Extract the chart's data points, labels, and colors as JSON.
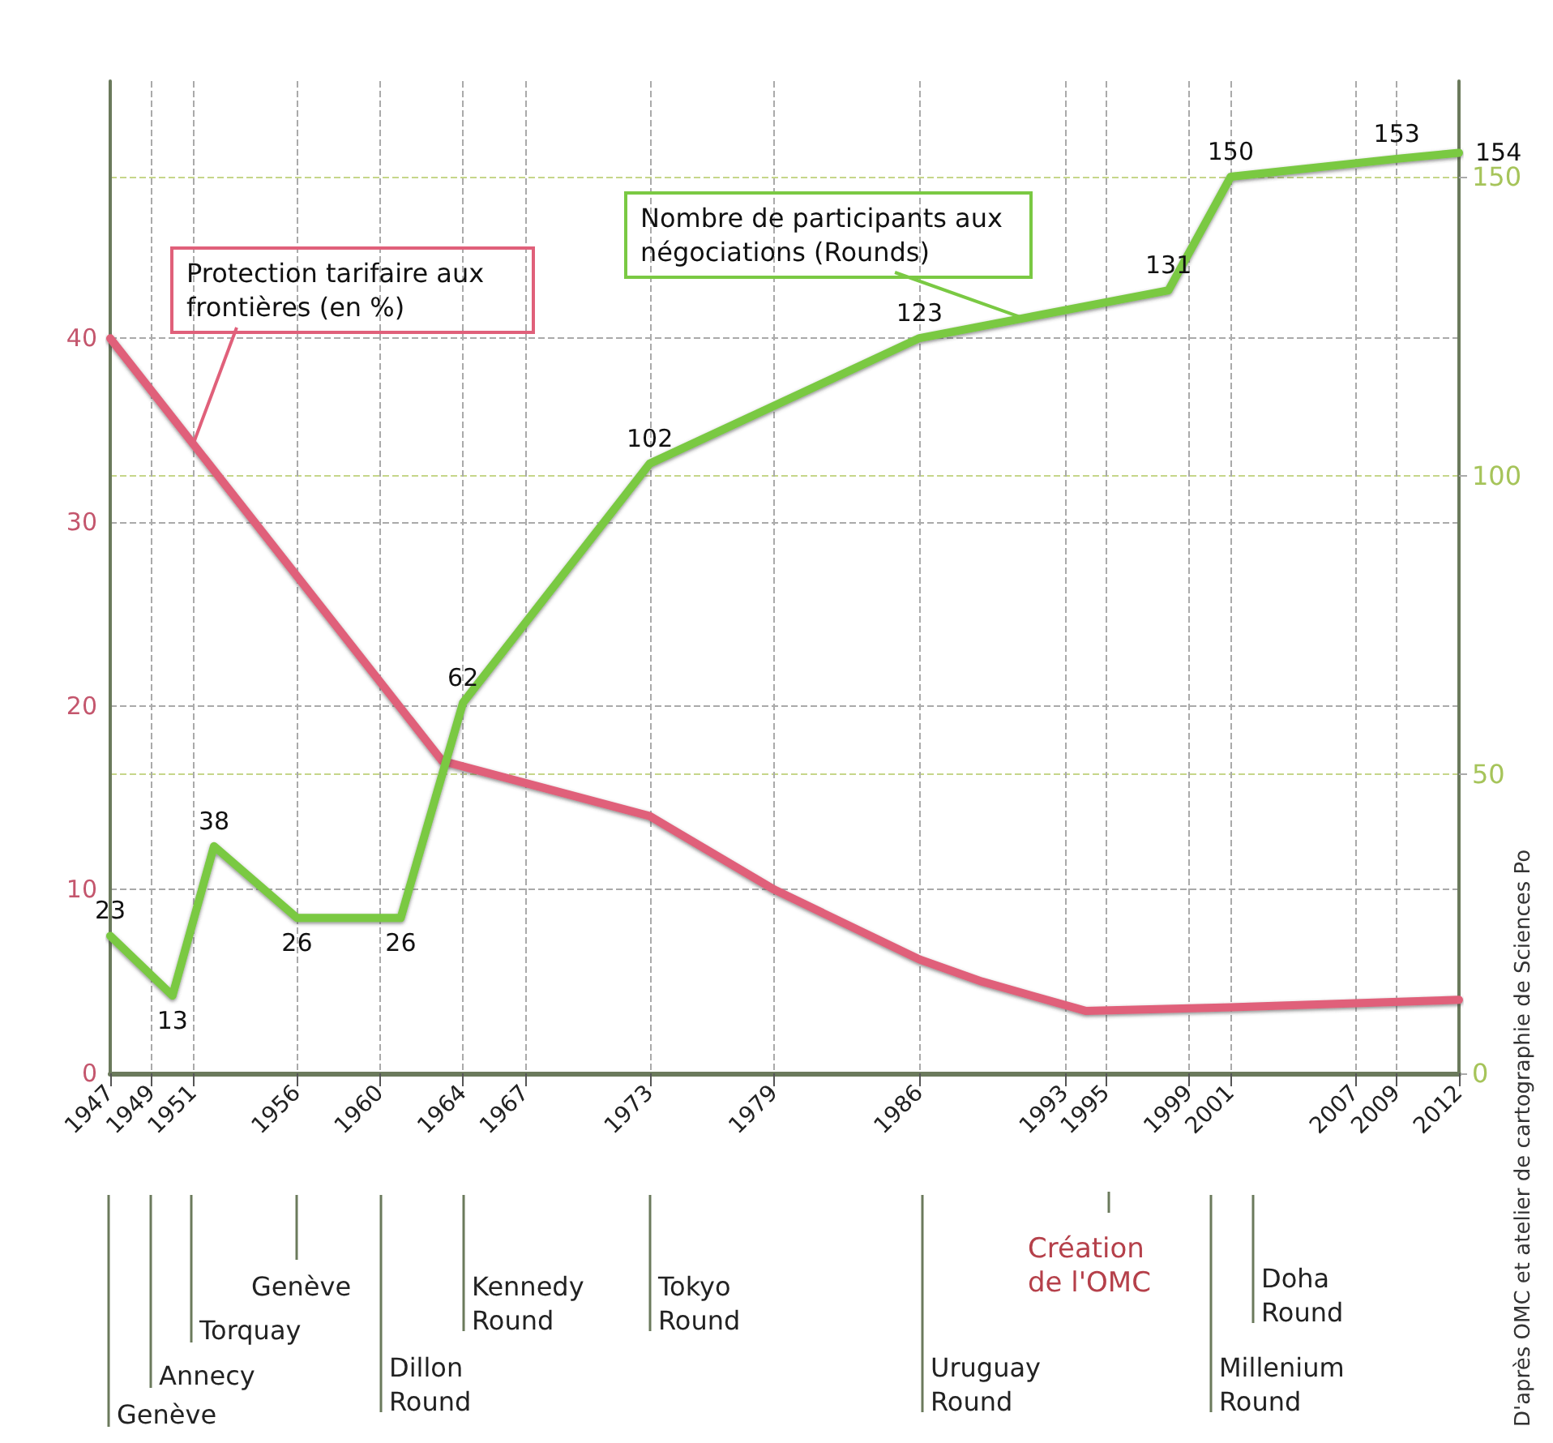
{
  "chart_data": {
    "type": "line",
    "xlim": [
      1947,
      2012
    ],
    "xticks": [
      1947,
      1949,
      1951,
      1956,
      1960,
      1964,
      1967,
      1973,
      1979,
      1986,
      1993,
      1995,
      1999,
      2001,
      2007,
      2009,
      2012
    ],
    "ylim": [
      0,
      54
    ],
    "yticks": [
      0,
      10,
      20,
      30,
      40
    ],
    "y2lim": [
      0,
      166
    ],
    "y2ticks": [
      0,
      50,
      100,
      150
    ],
    "grid": true,
    "legend": false,
    "marker": "none",
    "line_style": "solid",
    "series": [
      {
        "name": "Protection tarifaire aux frontières (en %)",
        "color": "#e0607a",
        "x": [
          1947,
          1963,
          1973,
          1979,
          1986,
          1989,
          1994,
          2001,
          2012
        ],
        "values": [
          40,
          17,
          14,
          10,
          6.2,
          5,
          3.4,
          3.6,
          4
        ]
      },
      {
        "name": "Nombre de participants aux négociations (Rounds)",
        "color": "#7ac943",
        "axis": "y2",
        "x": [
          1947,
          1950,
          1952,
          1956,
          1961,
          1964,
          1973,
          1986,
          1998,
          2001,
          2009,
          2012
        ],
        "values": [
          23,
          13,
          38,
          26,
          26,
          62,
          102,
          123,
          131,
          150,
          153,
          154
        ],
        "value_labels": [
          "23",
          "13",
          "38",
          "26",
          "26",
          "62",
          "102",
          "123",
          "131",
          "150",
          "153",
          "154"
        ]
      }
    ],
    "annotations": [
      "Genève",
      "Annecy",
      "Torquay",
      "Genève",
      "Dillon Round",
      "Kennedy Round",
      "Tokyo Round",
      "Uruguay Round",
      "Création de l'OMC",
      "Millenium Round",
      "Doha Round",
      "D'après OMC et atelier de cartographie de Sciences Po"
    ]
  }
}
